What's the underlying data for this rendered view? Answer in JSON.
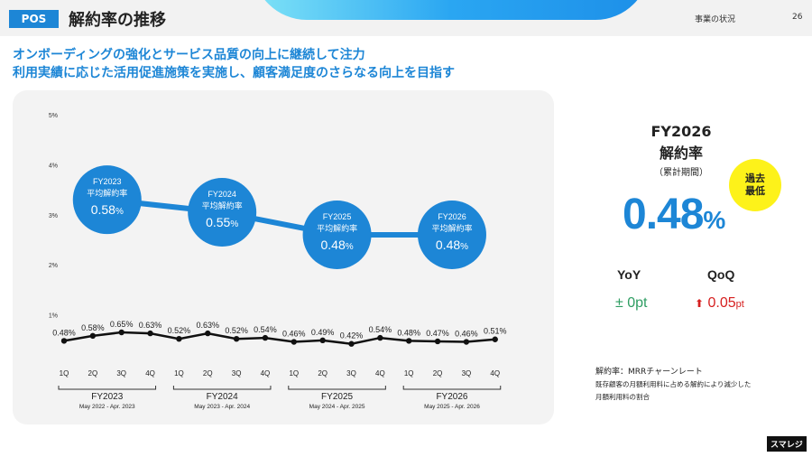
{
  "header": {
    "tag": "POS",
    "title": "解約率の推移",
    "section": "事業の状況",
    "page": "26"
  },
  "headline": {
    "line1": "オンボーディングの強化とサービス品質の向上に継続して注力",
    "line2": "利用実績に応じた活用促進施策を実施し、顧客満足度のさらなる向上を目指す"
  },
  "colors": {
    "accent": "#1d86d6",
    "bubble": "#1d86d6",
    "line": "#111111",
    "badge": "#fdf21a",
    "yoy": "#2e9d62",
    "qoq": "#d62020"
  },
  "chart_data": {
    "type": "line",
    "ylim": [
      0,
      5
    ],
    "y_ticks": [
      "1%",
      "2%",
      "3%",
      "4%",
      "5%"
    ],
    "grid": "none",
    "categories": [
      "1Q",
      "2Q",
      "3Q",
      "4Q",
      "1Q",
      "2Q",
      "3Q",
      "4Q",
      "1Q",
      "2Q",
      "3Q",
      "4Q",
      "1Q",
      "2Q",
      "3Q",
      "4Q"
    ],
    "series": [
      {
        "values": [
          0.48,
          0.58,
          0.65,
          0.63,
          0.52,
          0.63,
          0.52,
          0.54,
          0.46,
          0.49,
          0.42,
          0.54,
          0.48,
          0.47,
          0.46,
          0.51
        ],
        "labels": [
          "0.48%",
          "0.58%",
          "0.65%",
          "0.63%",
          "0.52%",
          "0.63%",
          "0.52%",
          "0.54%",
          "0.46%",
          "0.49%",
          "0.42%",
          "0.54%",
          "0.48%",
          "0.47%",
          "0.46%",
          "0.51%"
        ]
      }
    ],
    "fiscal_years": [
      {
        "name": "FY2023",
        "period": "May 2022 - Apr. 2023"
      },
      {
        "name": "FY2024",
        "period": "May 2023 - Apr. 2024"
      },
      {
        "name": "FY2025",
        "period": "May 2024  - Apr. 2025"
      },
      {
        "name": "FY2026",
        "period": "May 2025  - Apr. 2026"
      }
    ],
    "averages": [
      {
        "fy": "FY2023",
        "label": "平均解約率",
        "value": 0.58,
        "value_text": "0.58",
        "unit": "%"
      },
      {
        "fy": "FY2024",
        "label": "平均解約率",
        "value": 0.55,
        "value_text": "0.55",
        "unit": "%"
      },
      {
        "fy": "FY2025",
        "label": "平均解約率",
        "value": 0.48,
        "value_text": "0.48",
        "unit": "%"
      },
      {
        "fy": "FY2026",
        "label": "平均解約率",
        "value": 0.48,
        "value_text": "0.48",
        "unit": "%"
      }
    ],
    "averages_display_level": [
      3.3,
      3.05,
      2.6,
      2.6
    ]
  },
  "kpi": {
    "title_line1": "FY2026",
    "title_line2": "解約率",
    "subtitle": "（累計期間）",
    "value": "0.48",
    "unit": "%",
    "badge_line1": "過去",
    "badge_line2": "最低",
    "yoy_label": "YoY",
    "yoy_value": "± 0pt",
    "qoq_label": "QoQ",
    "qoq_arrow": "⬆",
    "qoq_value": "0.05",
    "qoq_unit": "pt"
  },
  "note": {
    "title": "解約率：MRRチャーンレート",
    "line1": "既存顧客の月額利用料に占める解約により減少した",
    "line2": "月額利用料の割合"
  },
  "logo": "スマレジ"
}
